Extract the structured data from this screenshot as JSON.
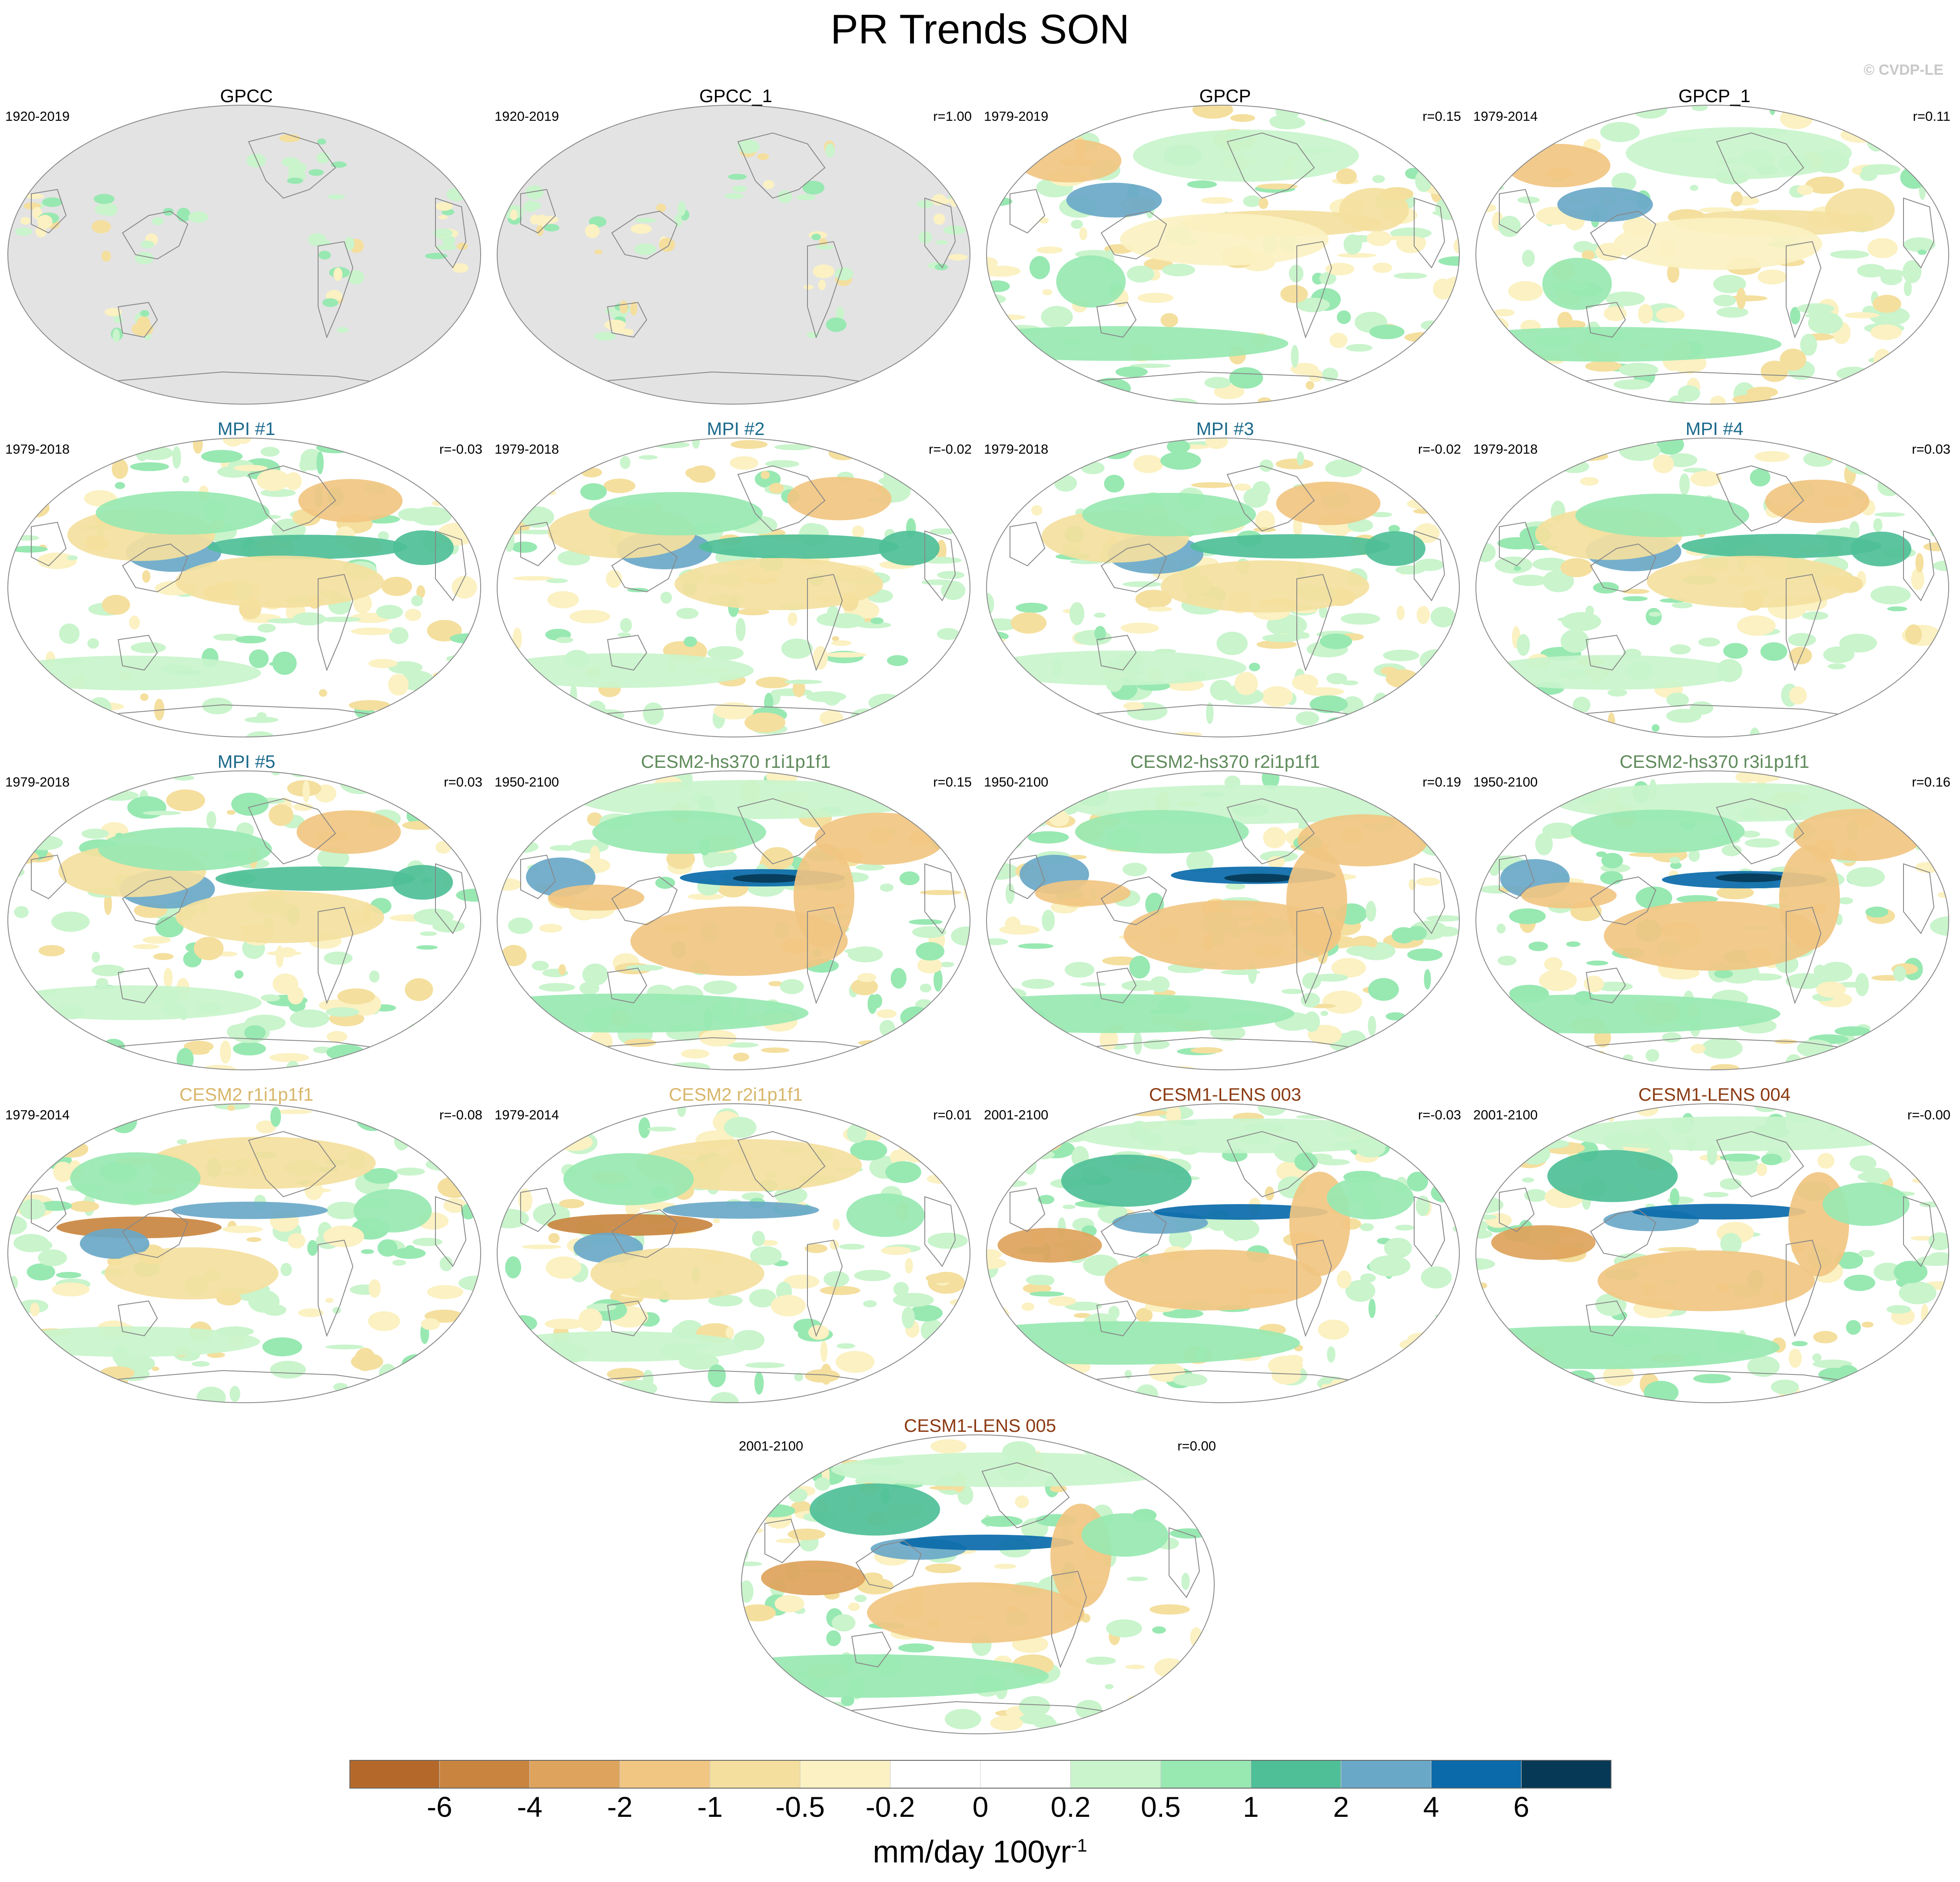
{
  "figure": {
    "title": "PR Trends SON",
    "watermark": "© CVDP-LE",
    "colorbar": {
      "units_text": "mm/day 100yr",
      "units_superscript": "-1",
      "tick_labels": [
        "-6",
        "-4",
        "-2",
        "-1",
        "-0.5",
        "-0.2",
        "0",
        "0.2",
        "0.5",
        "1",
        "2",
        "4",
        "6"
      ],
      "bin_colors": [
        "#b4692a",
        "#c98540",
        "#dea35c",
        "#f1c682",
        "#f4df9e",
        "#fbf1c2",
        "#ffffff",
        "#ffffff",
        "#c9f4cc",
        "#98e8b2",
        "#4fbf98",
        "#6aa8c8",
        "#0a6aaa",
        "#053956"
      ]
    },
    "land_missing_color": "#e3e3e3",
    "coast_color": "#888888"
  },
  "panels": [
    {
      "title": "GPCC",
      "title_color": "#000000",
      "period": "1920-2019",
      "corr": "",
      "masked_ocean": true,
      "pattern": "obs"
    },
    {
      "title": "GPCC_1",
      "title_color": "#000000",
      "period": "1920-2019",
      "corr": "r=1.00",
      "masked_ocean": true,
      "pattern": "obs"
    },
    {
      "title": "GPCP",
      "title_color": "#000000",
      "period": "1979-2019",
      "corr": "r=0.15",
      "masked_ocean": false,
      "pattern": "obs2"
    },
    {
      "title": "GPCP_1",
      "title_color": "#000000",
      "period": "1979-2014",
      "corr": "r=0.11",
      "masked_ocean": false,
      "pattern": "obs2"
    },
    {
      "title": "MPI #1",
      "title_color": "#1c6a8c",
      "period": "1979-2018",
      "corr": "r=-0.03",
      "masked_ocean": false,
      "pattern": "mpi"
    },
    {
      "title": "MPI #2",
      "title_color": "#1c6a8c",
      "period": "1979-2018",
      "corr": "r=-0.02",
      "masked_ocean": false,
      "pattern": "mpi"
    },
    {
      "title": "MPI #3",
      "title_color": "#1c6a8c",
      "period": "1979-2018",
      "corr": "r=-0.02",
      "masked_ocean": false,
      "pattern": "mpi"
    },
    {
      "title": "MPI #4",
      "title_color": "#1c6a8c",
      "period": "1979-2018",
      "corr": "r=0.03",
      "masked_ocean": false,
      "pattern": "mpi"
    },
    {
      "title": "MPI #5",
      "title_color": "#1c6a8c",
      "period": "1979-2018",
      "corr": "r=0.03",
      "masked_ocean": false,
      "pattern": "mpi"
    },
    {
      "title": "CESM2-hs370 r1i1p1f1",
      "title_color": "#5e8a5a",
      "period": "1950-2100",
      "corr": "r=0.15",
      "masked_ocean": false,
      "pattern": "hs370"
    },
    {
      "title": "CESM2-hs370 r2i1p1f1",
      "title_color": "#5e8a5a",
      "period": "1950-2100",
      "corr": "r=0.19",
      "masked_ocean": false,
      "pattern": "hs370"
    },
    {
      "title": "CESM2-hs370 r3i1p1f1",
      "title_color": "#5e8a5a",
      "period": "1950-2100",
      "corr": "r=0.16",
      "masked_ocean": false,
      "pattern": "hs370"
    },
    {
      "title": "CESM2 r1i1p1f1",
      "title_color": "#d8b66a",
      "period": "1979-2014",
      "corr": "r=-0.08",
      "masked_ocean": false,
      "pattern": "cesm2"
    },
    {
      "title": "CESM2 r2i1p1f1",
      "title_color": "#d8b66a",
      "period": "1979-2014",
      "corr": "r=0.01",
      "masked_ocean": false,
      "pattern": "cesm2"
    },
    {
      "title": "CESM1-LENS 003",
      "title_color": "#8c3a12",
      "period": "2001-2100",
      "corr": "r=-0.03",
      "masked_ocean": false,
      "pattern": "lens"
    },
    {
      "title": "CESM1-LENS 004",
      "title_color": "#8c3a12",
      "period": "2001-2100",
      "corr": "r=-0.00",
      "masked_ocean": false,
      "pattern": "lens"
    },
    {
      "title": "CESM1-LENS 005",
      "title_color": "#8c3a12",
      "period": "2001-2100",
      "corr": "r=0.00",
      "masked_ocean": false,
      "pattern": "lens"
    }
  ]
}
